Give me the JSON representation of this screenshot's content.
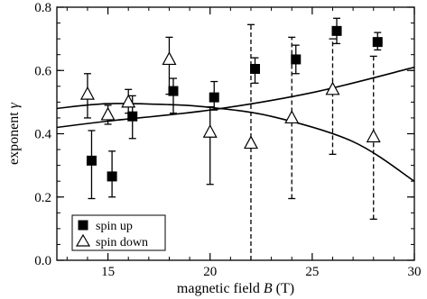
{
  "chart_data": {
    "type": "scatter",
    "xlabel_parts": {
      "pre": "magnetic field ",
      "var": "B",
      "post": " (T)"
    },
    "ylabel_parts": {
      "pre": "exponent ",
      "var": "γ"
    },
    "xlim": [
      12.5,
      30
    ],
    "ylim": [
      0,
      0.8
    ],
    "x_ticks": [
      15,
      20,
      25,
      30
    ],
    "y_ticks": [
      0.0,
      0.2,
      0.4,
      0.6,
      0.8
    ],
    "y_tick_labels": [
      "0.0",
      "0.2",
      "0.4",
      "0.6",
      "0.8"
    ],
    "minor_x_step": 1,
    "minor_y_step": 0.05,
    "grid": false,
    "legend": {
      "position": "bottom-left",
      "entries": [
        {
          "marker": "filled-square",
          "label": "spin up"
        },
        {
          "marker": "open-triangle",
          "label": "spin down"
        }
      ]
    },
    "series": [
      {
        "name": "spin up",
        "marker": "filled-square",
        "points": [
          {
            "x": 14.2,
            "y": 0.315,
            "err_lo": 0.195,
            "err_hi": 0.41,
            "dashed": false
          },
          {
            "x": 15.2,
            "y": 0.265,
            "err_lo": 0.2,
            "err_hi": 0.345,
            "dashed": false
          },
          {
            "x": 16.2,
            "y": 0.455,
            "err_lo": 0.385,
            "err_hi": 0.52,
            "dashed": false
          },
          {
            "x": 18.2,
            "y": 0.535,
            "err_lo": 0.465,
            "err_hi": 0.575,
            "dashed": false
          },
          {
            "x": 20.2,
            "y": 0.515,
            "err_lo": 0.475,
            "err_hi": 0.565,
            "dashed": false
          },
          {
            "x": 22.2,
            "y": 0.605,
            "err_lo": 0.56,
            "err_hi": 0.64,
            "dashed": false
          },
          {
            "x": 24.2,
            "y": 0.635,
            "err_lo": 0.59,
            "err_hi": 0.68,
            "dashed": false
          },
          {
            "x": 26.2,
            "y": 0.725,
            "err_lo": 0.685,
            "err_hi": 0.765,
            "dashed": false
          },
          {
            "x": 28.2,
            "y": 0.69,
            "err_lo": 0.665,
            "err_hi": 0.72,
            "dashed": false
          }
        ]
      },
      {
        "name": "spin down",
        "marker": "open-triangle",
        "points": [
          {
            "x": 14.0,
            "y": 0.525,
            "err_lo": 0.45,
            "err_hi": 0.59,
            "dashed": false
          },
          {
            "x": 15.0,
            "y": 0.46,
            "err_lo": 0.43,
            "err_hi": 0.49,
            "dashed": false
          },
          {
            "x": 16.0,
            "y": 0.5,
            "err_lo": 0.465,
            "err_hi": 0.54,
            "dashed": false
          },
          {
            "x": 18.0,
            "y": 0.635,
            "err_lo": 0.525,
            "err_hi": 0.705,
            "dashed": false
          },
          {
            "x": 20.0,
            "y": 0.405,
            "err_lo": 0.24,
            "err_hi": 0.485,
            "dashed": false
          },
          {
            "x": 22.0,
            "y": 0.37,
            "err_lo": 0.0,
            "err_hi": 0.745,
            "dashed": true
          },
          {
            "x": 24.0,
            "y": 0.45,
            "err_lo": 0.195,
            "err_hi": 0.705,
            "dashed": true
          },
          {
            "x": 26.0,
            "y": 0.54,
            "err_lo": 0.335,
            "err_hi": 0.7,
            "dashed": true
          },
          {
            "x": 28.0,
            "y": 0.39,
            "err_lo": 0.13,
            "err_hi": 0.645,
            "dashed": true
          }
        ]
      }
    ],
    "curves": [
      {
        "shape": "rising",
        "points": [
          [
            12.5,
            0.42
          ],
          [
            15,
            0.44
          ],
          [
            20,
            0.475
          ],
          [
            25,
            0.53
          ],
          [
            30,
            0.61
          ]
        ]
      },
      {
        "shape": "falling",
        "points": [
          [
            12.5,
            0.48
          ],
          [
            15,
            0.495
          ],
          [
            18,
            0.492
          ],
          [
            20,
            0.483
          ],
          [
            23,
            0.455
          ],
          [
            27,
            0.375
          ],
          [
            30,
            0.25
          ]
        ]
      }
    ]
  }
}
